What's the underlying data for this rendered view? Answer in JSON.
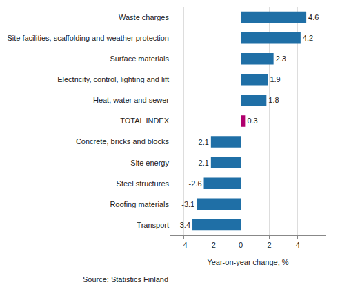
{
  "chart_data": {
    "type": "bar",
    "orientation": "horizontal",
    "categories": [
      "Waste charges",
      "Site facilities, scaffolding and weather protection",
      "Surface materials",
      "Electricity, control, lighting and lift",
      "Heat, water and sewer",
      "TOTAL INDEX",
      "Concrete, bricks and blocks",
      "Site energy",
      "Steel structures",
      "Roofing materials",
      "Transport"
    ],
    "values": [
      4.6,
      4.2,
      2.3,
      1.9,
      1.8,
      0.3,
      -2.1,
      -2.1,
      -2.6,
      -3.1,
      -3.4
    ],
    "colors": [
      "#1f6fa6",
      "#1f6fa6",
      "#1f6fa6",
      "#1f6fa6",
      "#1f6fa6",
      "#b0006e",
      "#1f6fa6",
      "#1f6fa6",
      "#1f6fa6",
      "#1f6fa6",
      "#1f6fa6"
    ],
    "x_label": "Year-on-year change, %",
    "xlim": [
      -5,
      6
    ],
    "xticks": [
      -4,
      -2,
      0,
      2,
      4
    ],
    "grid": true,
    "data_labels": true,
    "annotations": [
      "Source: Statistics Finland"
    ]
  }
}
